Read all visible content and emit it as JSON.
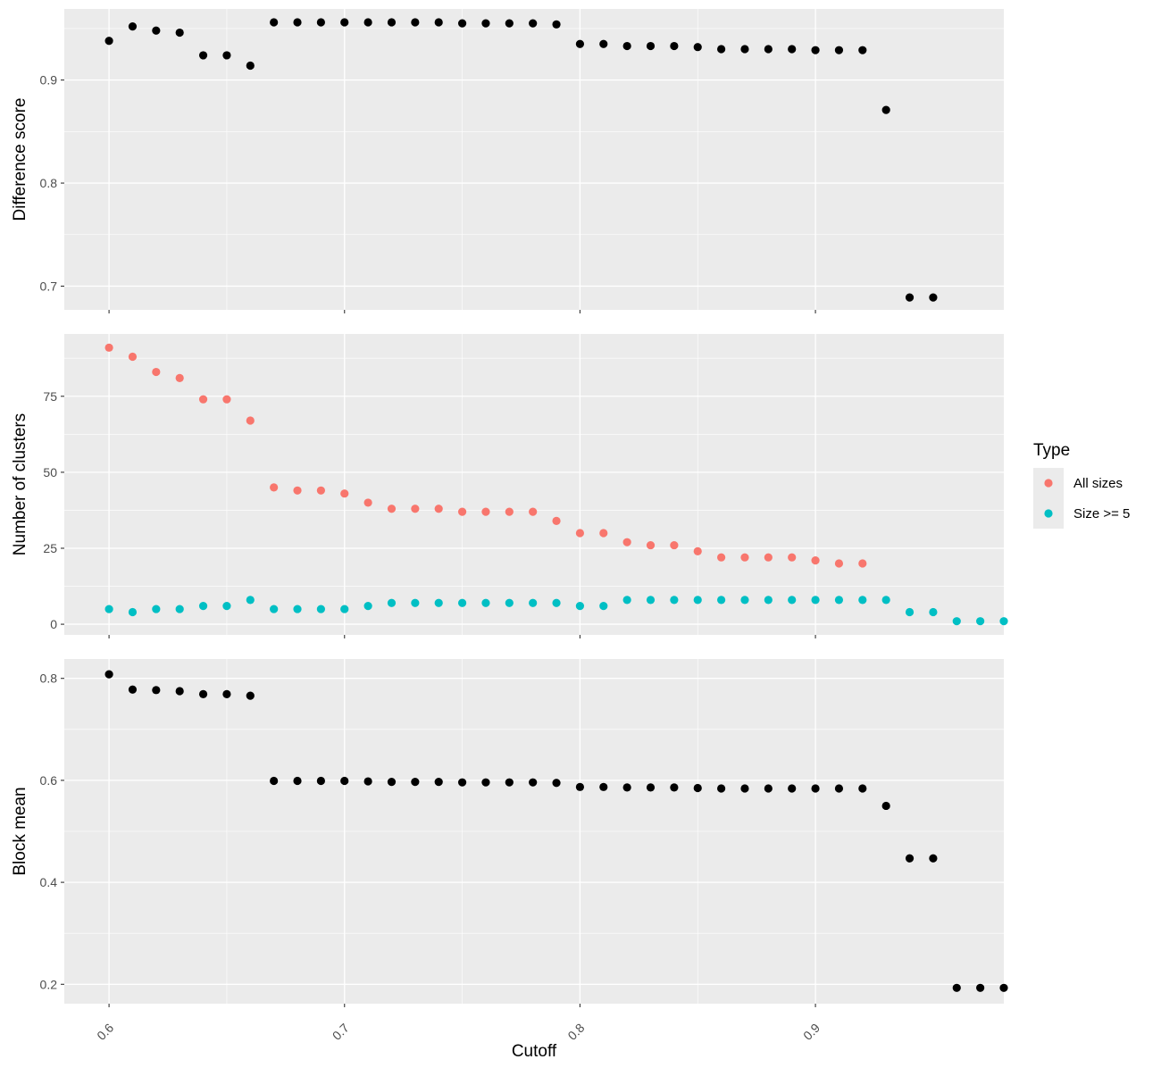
{
  "chart_data": {
    "type": "scatter",
    "xlabel": "Cutoff",
    "x_ticks": [
      "0.6",
      "0.7",
      "0.8",
      "0.9"
    ],
    "x_tick_values": [
      0.6,
      0.7,
      0.8,
      0.9
    ],
    "xlim": [
      0.581,
      0.98
    ],
    "grid": true,
    "legend": {
      "title": "Type",
      "position": "right",
      "entries": [
        {
          "label": "All sizes",
          "color": "#F8766D"
        },
        {
          "label": "Size >= 5",
          "color": "#00BFC4"
        }
      ]
    },
    "panels": [
      {
        "ylabel": "Difference score",
        "y_ticks": [
          "0.7",
          "0.8",
          "0.9"
        ],
        "y_tick_values": [
          0.7,
          0.8,
          0.9
        ],
        "ylim": [
          0.677,
          0.969
        ],
        "series": [
          {
            "color": "#000000",
            "x": [
              0.6,
              0.61,
              0.62,
              0.63,
              0.64,
              0.65,
              0.66,
              0.67,
              0.68,
              0.69,
              0.7,
              0.71,
              0.72,
              0.73,
              0.74,
              0.75,
              0.76,
              0.77,
              0.78,
              0.79,
              0.8,
              0.81,
              0.82,
              0.83,
              0.84,
              0.85,
              0.86,
              0.87,
              0.88,
              0.89,
              0.9,
              0.91,
              0.92,
              0.93,
              0.94,
              0.95
            ],
            "y": [
              0.938,
              0.952,
              0.948,
              0.946,
              0.924,
              0.924,
              0.914,
              0.956,
              0.956,
              0.956,
              0.956,
              0.956,
              0.956,
              0.956,
              0.956,
              0.955,
              0.955,
              0.955,
              0.955,
              0.954,
              0.935,
              0.935,
              0.933,
              0.933,
              0.933,
              0.932,
              0.93,
              0.93,
              0.93,
              0.93,
              0.929,
              0.929,
              0.929,
              0.871,
              0.689,
              0.689
            ]
          }
        ]
      },
      {
        "ylabel": "Number of clusters",
        "y_ticks": [
          "0",
          "25",
          "50",
          "75"
        ],
        "y_tick_values": [
          0,
          25,
          50,
          75
        ],
        "ylim": [
          -3.5,
          95.5
        ],
        "series": [
          {
            "name": "All sizes",
            "color": "#F8766D",
            "x": [
              0.6,
              0.61,
              0.62,
              0.63,
              0.64,
              0.65,
              0.66,
              0.67,
              0.68,
              0.69,
              0.7,
              0.71,
              0.72,
              0.73,
              0.74,
              0.75,
              0.76,
              0.77,
              0.78,
              0.79,
              0.8,
              0.81,
              0.82,
              0.83,
              0.84,
              0.85,
              0.86,
              0.87,
              0.88,
              0.89,
              0.9,
              0.91,
              0.92
            ],
            "y": [
              91,
              88,
              83,
              81,
              74,
              74,
              67,
              45,
              44,
              44,
              43,
              40,
              38,
              38,
              38,
              37,
              37,
              37,
              37,
              34,
              30,
              30,
              27,
              26,
              26,
              24,
              22,
              22,
              22,
              22,
              21,
              20,
              20
            ]
          },
          {
            "name": "Size >= 5",
            "color": "#00BFC4",
            "x": [
              0.6,
              0.61,
              0.62,
              0.63,
              0.64,
              0.65,
              0.66,
              0.67,
              0.68,
              0.69,
              0.7,
              0.71,
              0.72,
              0.73,
              0.74,
              0.75,
              0.76,
              0.77,
              0.78,
              0.79,
              0.8,
              0.81,
              0.82,
              0.83,
              0.84,
              0.85,
              0.86,
              0.87,
              0.88,
              0.89,
              0.9,
              0.91,
              0.92,
              0.93,
              0.94,
              0.95,
              0.96,
              0.97,
              0.98
            ],
            "y": [
              5,
              4,
              5,
              5,
              6,
              6,
              8,
              5,
              5,
              5,
              5,
              6,
              7,
              7,
              7,
              7,
              7,
              7,
              7,
              7,
              6,
              6,
              8,
              8,
              8,
              8,
              8,
              8,
              8,
              8,
              8,
              8,
              8,
              8,
              4,
              4,
              1,
              1,
              1
            ]
          }
        ]
      },
      {
        "ylabel": "Block mean",
        "y_ticks": [
          "0.2",
          "0.4",
          "0.6",
          "0.8"
        ],
        "y_tick_values": [
          0.2,
          0.4,
          0.6,
          0.8
        ],
        "ylim": [
          0.162,
          0.838
        ],
        "series": [
          {
            "color": "#000000",
            "x": [
              0.6,
              0.61,
              0.62,
              0.63,
              0.64,
              0.65,
              0.66,
              0.67,
              0.68,
              0.69,
              0.7,
              0.71,
              0.72,
              0.73,
              0.74,
              0.75,
              0.76,
              0.77,
              0.78,
              0.79,
              0.8,
              0.81,
              0.82,
              0.83,
              0.84,
              0.85,
              0.86,
              0.87,
              0.88,
              0.89,
              0.9,
              0.91,
              0.92,
              0.93,
              0.94,
              0.95,
              0.96,
              0.97,
              0.98
            ],
            "y": [
              0.808,
              0.778,
              0.777,
              0.775,
              0.769,
              0.769,
              0.766,
              0.599,
              0.599,
              0.599,
              0.599,
              0.598,
              0.597,
              0.597,
              0.597,
              0.596,
              0.596,
              0.596,
              0.596,
              0.595,
              0.587,
              0.587,
              0.586,
              0.586,
              0.586,
              0.585,
              0.584,
              0.584,
              0.584,
              0.584,
              0.584,
              0.584,
              0.584,
              0.55,
              0.447,
              0.447,
              0.193,
              0.193,
              0.193
            ]
          }
        ]
      }
    ]
  }
}
